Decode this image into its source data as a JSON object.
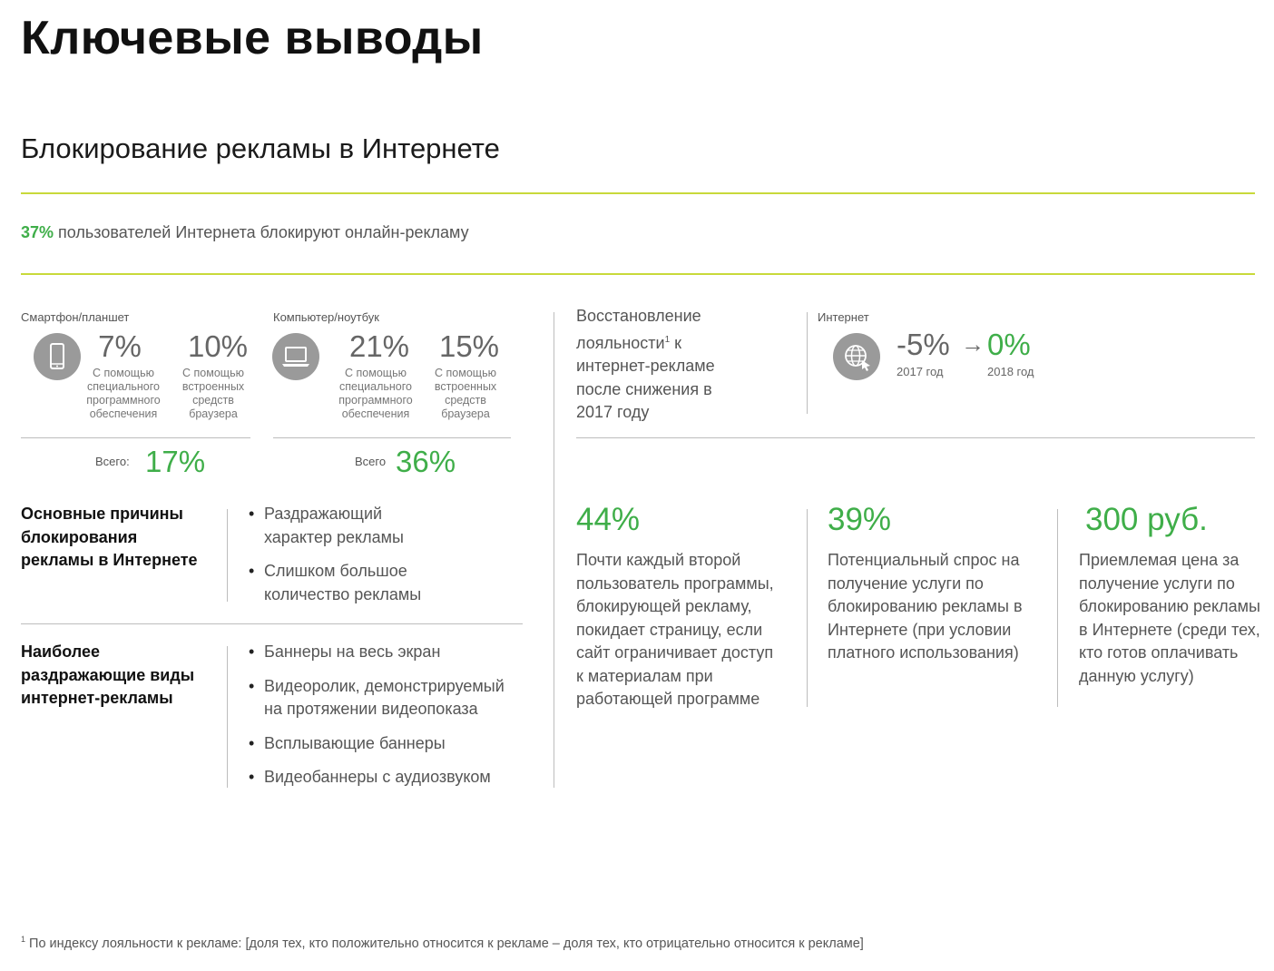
{
  "title": "Ключевые выводы",
  "section_title": "Блокирование рекламы в Интернете",
  "headline": {
    "accent": "37%",
    "text": " пользователей Интернета блокируют онлайн-рекламу"
  },
  "devices": [
    {
      "label": "Смартфон/планшет",
      "icon": "smartphone-icon",
      "stat1": {
        "value": "7%",
        "caption": "С помощью специального программного обеспечения"
      },
      "stat2": {
        "value": "10%",
        "caption": "С помощью встроенных средств браузера"
      },
      "total_label": "Всего:",
      "total_value": "17%"
    },
    {
      "label": "Компьютер/ноутбук",
      "icon": "laptop-icon",
      "stat1": {
        "value": "21%",
        "caption": "С помощью специального программного обеспечения"
      },
      "stat2": {
        "value": "15%",
        "caption": "С помощью встроенных средств браузера"
      },
      "total_label": "Всего",
      "total_value": "36%"
    }
  ],
  "reasons": {
    "title": "Основные причины блокирования рекламы в Интернете",
    "items": [
      "Раздражающий характер рекламы",
      "Слишком большое количество рекламы"
    ]
  },
  "annoying": {
    "title": "Наиболее раздражающие виды интернет-рекламы",
    "items": [
      "Баннеры на весь экран",
      "Видеоролик, демонстрируемый на протяжении видеопоказа",
      "Всплывающие баннеры",
      "Видеобаннеры с аудиозвуком"
    ]
  },
  "recovery": {
    "text_before": "Восстановление лояльности",
    "sup": "1",
    "text_after": " к интернет-рекламе после снижения в 2017 году"
  },
  "internet": {
    "label": "Интернет",
    "icon": "globe-icon",
    "from_value": "-5%",
    "arrow": "→",
    "to_value": "0%",
    "from_year": "2017 год",
    "to_year": "2018 год"
  },
  "stats": [
    {
      "value": "44%",
      "text": "Почти каждый второй пользователь программы, блокирующей рекламу, покидает страницу, если сайт ограничивает доступ к материалам при работающей программе"
    },
    {
      "value": "39%",
      "text": "Потенциальный спрос на получение услуги по блокированию рекламы в Интернете (при условии платного использования)"
    },
    {
      "value": "300 руб.",
      "text": "Приемлемая цена за получение услуги по блокированию рекламы в Интернете (среди тех, кто готов оплачивать данную услугу)"
    }
  ],
  "footnote": {
    "sup": "1",
    "text": " По индексу лояльности к рекламе: [доля тех, кто положительно относится к рекламе – доля тех, кто отрицательно относится к рекламе]"
  },
  "colors": {
    "accent_green": "#3fae49",
    "rule_lime": "#c8d93a",
    "icon_gray": "#9a9a9a"
  }
}
